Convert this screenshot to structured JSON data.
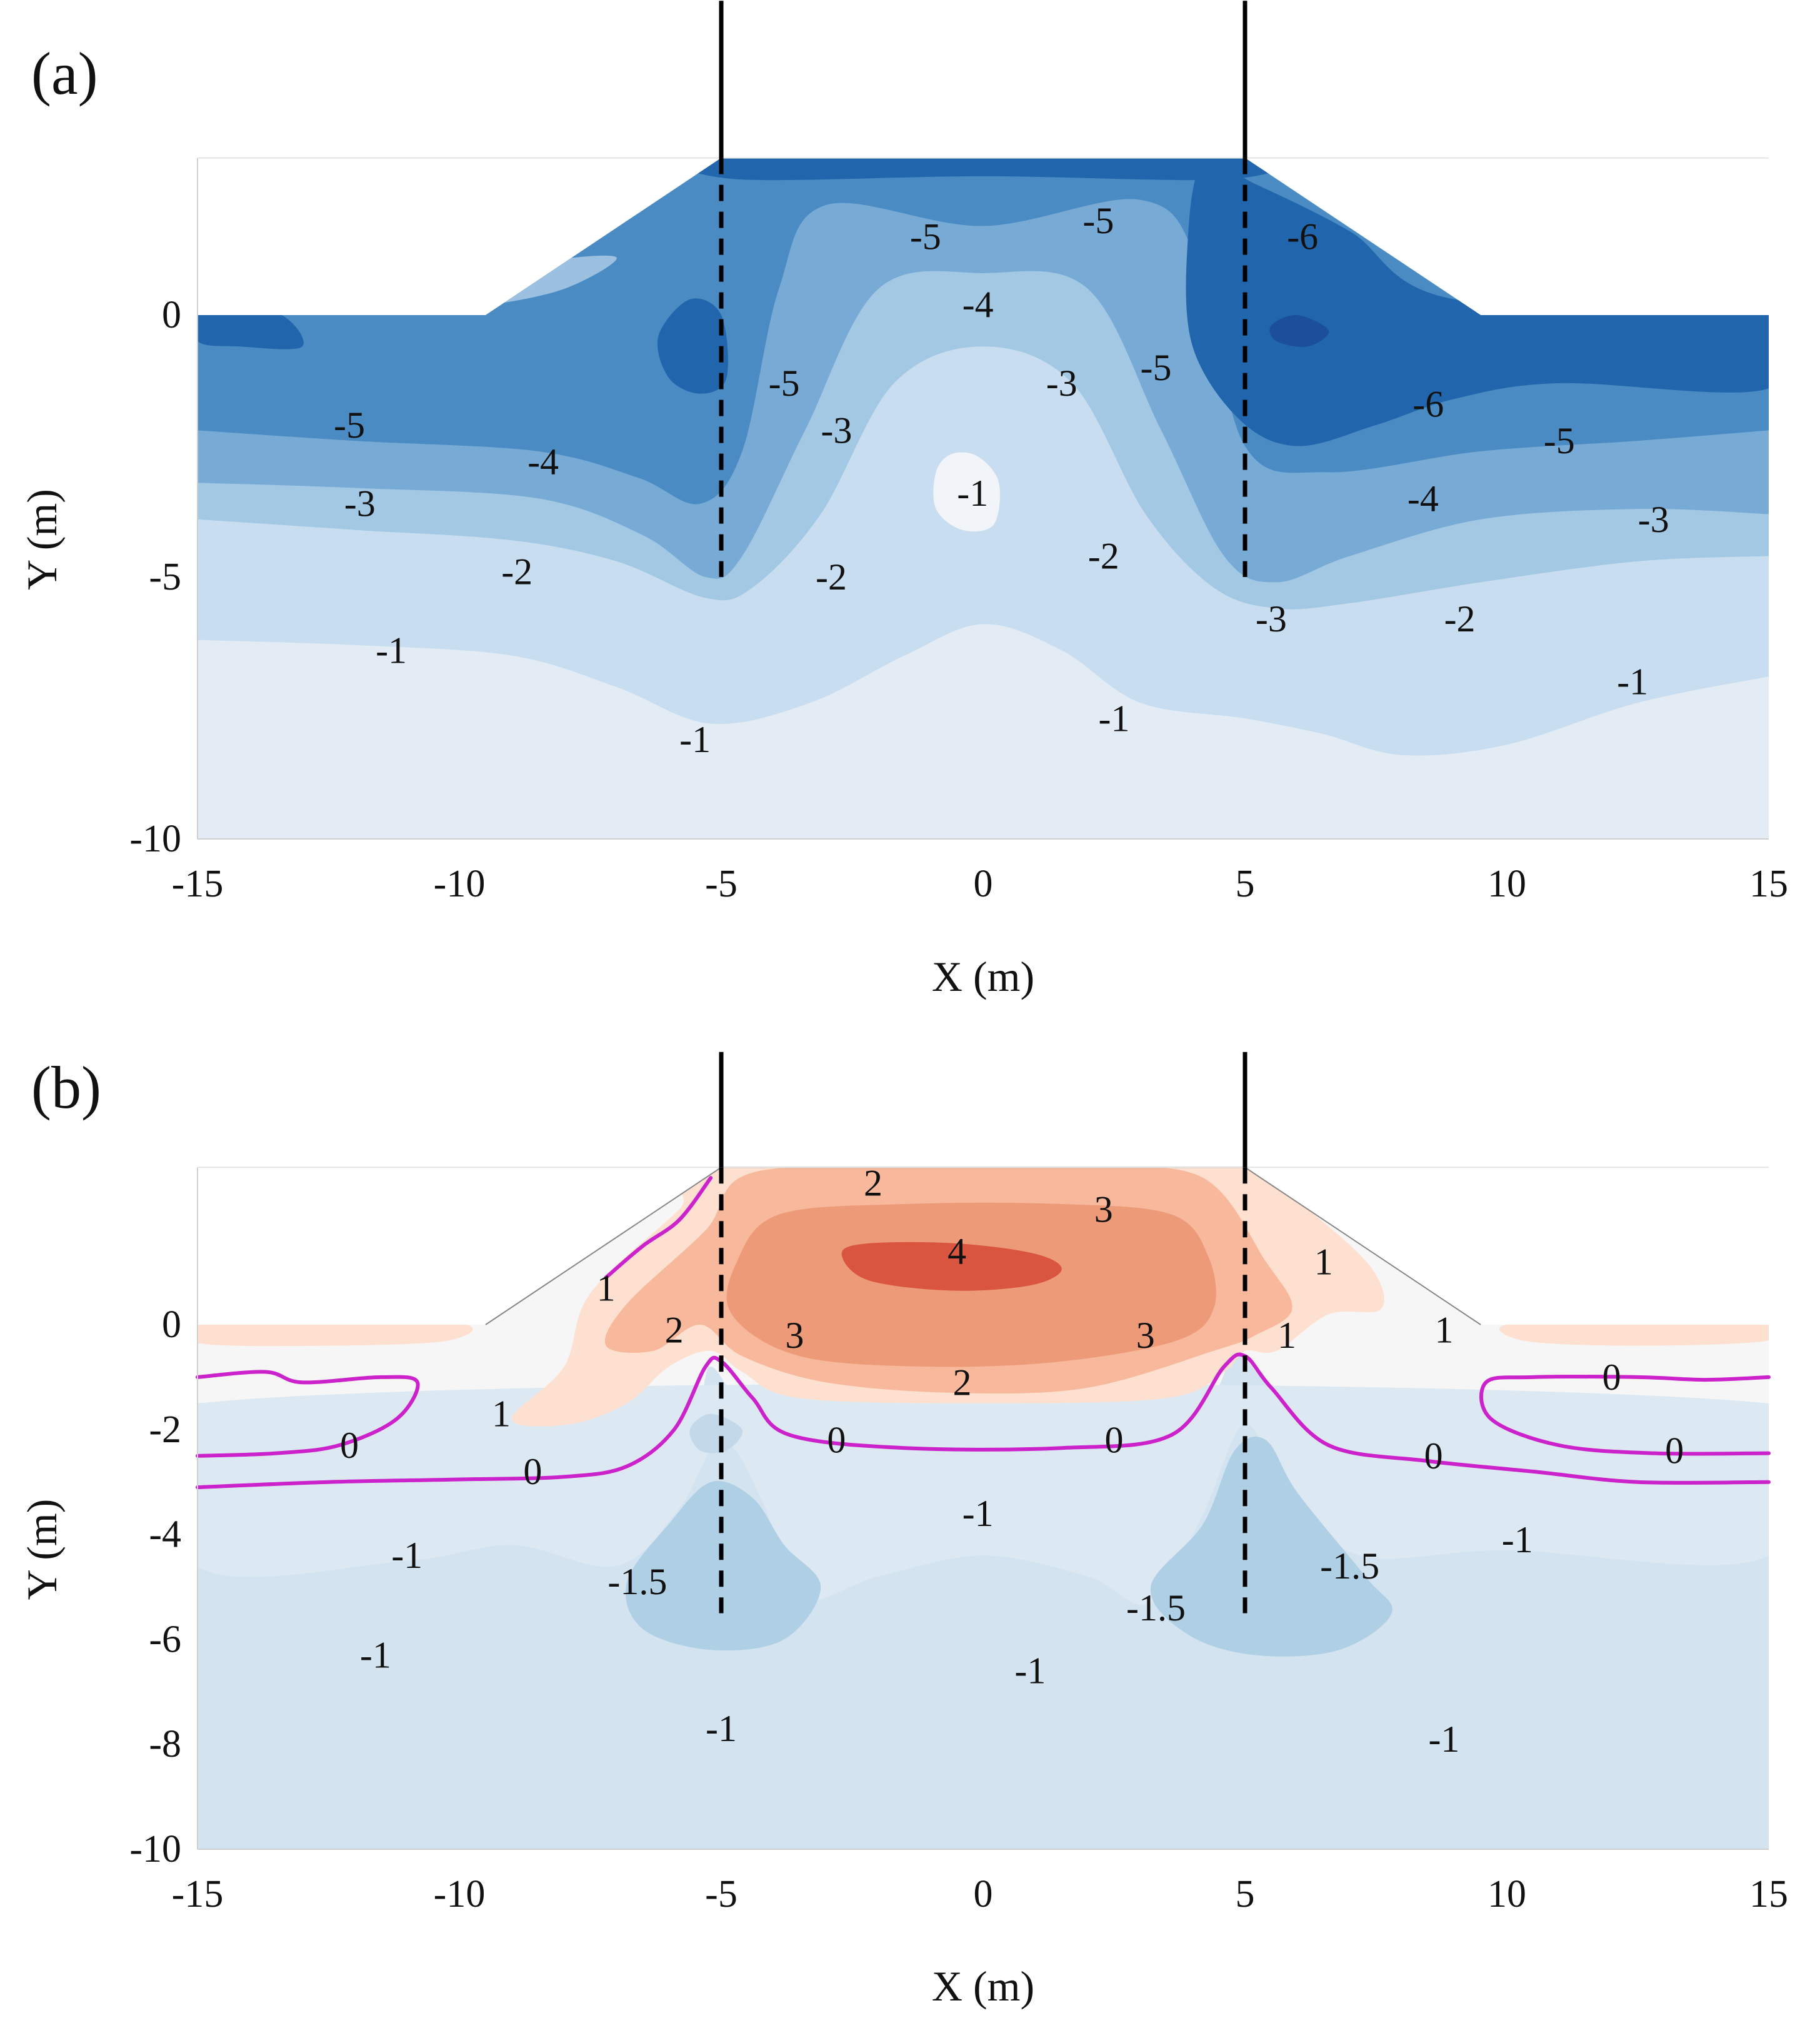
{
  "chart_data": [
    {
      "type": "contour",
      "panel_label": "(a)",
      "xlabel": "X (m)",
      "ylabel": "Y (m)",
      "xlim": [
        -15,
        15
      ],
      "ylim": [
        -10,
        3
      ],
      "xticks": [
        -15,
        -10,
        -5,
        0,
        5,
        10,
        15
      ],
      "yticks": [
        0,
        -5,
        -10
      ],
      "embankment_crest": {
        "x": [
          -5,
          5
        ],
        "y": 3
      },
      "embankment_toe": {
        "x": [
          -9.5,
          9.5
        ],
        "y": 0
      },
      "piles": [
        {
          "x": -5,
          "top": 6,
          "bottom": -5
        },
        {
          "x": 5,
          "top": 6,
          "bottom": -5
        }
      ],
      "levels": [
        -6,
        -5,
        -4,
        -3,
        -2,
        -1
      ],
      "colors": [
        "#2166ac",
        "#4a8bc4",
        "#77aad5",
        "#a3c8e4",
        "#c8def0",
        "#e3ecf5"
      ],
      "contour_labels": [
        {
          "text": "-5",
          "x": -1.1,
          "y": 1.5
        },
        {
          "text": "-5",
          "x": 2.2,
          "y": 1.8
        },
        {
          "text": "-6",
          "x": 6.1,
          "y": 1.5
        },
        {
          "text": "-4",
          "x": -0.1,
          "y": 0.2
        },
        {
          "text": "-5",
          "x": -3.8,
          "y": -1.3
        },
        {
          "text": "-3",
          "x": 1.5,
          "y": -1.3
        },
        {
          "text": "-5",
          "x": 3.3,
          "y": -1.0
        },
        {
          "text": "-3",
          "x": -2.8,
          "y": -2.2
        },
        {
          "text": "-5",
          "x": -12.1,
          "y": -2.1
        },
        {
          "text": "-4",
          "x": -8.4,
          "y": -2.8
        },
        {
          "text": "-6",
          "x": 8.5,
          "y": -1.7
        },
        {
          "text": "-5",
          "x": 11.0,
          "y": -2.4
        },
        {
          "text": "-1",
          "x": -0.2,
          "y": -3.4
        },
        {
          "text": "-3",
          "x": -11.9,
          "y": -3.6
        },
        {
          "text": "-4",
          "x": 8.4,
          "y": -3.5
        },
        {
          "text": "-3",
          "x": 12.8,
          "y": -3.9
        },
        {
          "text": "-2",
          "x": -2.9,
          "y": -5.0
        },
        {
          "text": "-2",
          "x": 2.3,
          "y": -4.6
        },
        {
          "text": "-2",
          "x": -8.9,
          "y": -4.9
        },
        {
          "text": "-3",
          "x": 5.5,
          "y": -5.8
        },
        {
          "text": "-2",
          "x": 9.1,
          "y": -5.8
        },
        {
          "text": "-1",
          "x": -11.3,
          "y": -6.4
        },
        {
          "text": "-1",
          "x": 12.4,
          "y": -7.0
        },
        {
          "text": "-1",
          "x": 2.5,
          "y": -7.7
        },
        {
          "text": "-1",
          "x": -5.5,
          "y": -8.1
        }
      ]
    },
    {
      "type": "contour",
      "panel_label": "(b)",
      "xlabel": "X (m)",
      "ylabel": "Y (m)",
      "xlim": [
        -15,
        15
      ],
      "ylim": [
        -10,
        3
      ],
      "xticks": [
        -15,
        -10,
        -5,
        0,
        5,
        10,
        15
      ],
      "yticks": [
        0,
        -2,
        -4,
        -6,
        -8,
        -10
      ],
      "embankment_crest": {
        "x": [
          -5,
          5
        ],
        "y": 3
      },
      "embankment_toe": {
        "x": [
          -9.5,
          9.5
        ],
        "y": 0
      },
      "piles": [
        {
          "x": -5,
          "top": 5.2,
          "bottom": -5.5
        },
        {
          "x": 5,
          "top": 5.2,
          "bottom": -5.5
        }
      ],
      "levels": [
        -1.5,
        -1,
        0,
        1,
        2,
        3,
        4
      ],
      "colors": [
        "#afcfe5",
        "#d3e4f0",
        "#f6f6f6",
        "#fde0cf",
        "#f7b89b",
        "#ec9a78",
        "#d9553f"
      ],
      "zero_contour_color": "#cc22cc",
      "contour_labels": [
        {
          "text": "2",
          "x": -2.1,
          "y": 2.7
        },
        {
          "text": "3",
          "x": 2.3,
          "y": 2.2
        },
        {
          "text": "4",
          "x": -0.5,
          "y": 1.4
        },
        {
          "text": "1",
          "x": -7.2,
          "y": 0.7
        },
        {
          "text": "1",
          "x": 6.5,
          "y": 1.2
        },
        {
          "text": "1",
          "x": 8.8,
          "y": -0.1
        },
        {
          "text": "2",
          "x": -5.9,
          "y": -0.1
        },
        {
          "text": "3",
          "x": -3.6,
          "y": -0.2
        },
        {
          "text": "3",
          "x": 3.1,
          "y": -0.2
        },
        {
          "text": "1",
          "x": 5.8,
          "y": -0.2
        },
        {
          "text": "2",
          "x": -0.4,
          "y": -1.1
        },
        {
          "text": "0",
          "x": 12.0,
          "y": -1.0
        },
        {
          "text": "1",
          "x": -9.2,
          "y": -1.7
        },
        {
          "text": "0",
          "x": -12.1,
          "y": -2.3
        },
        {
          "text": "0",
          "x": -2.8,
          "y": -2.2
        },
        {
          "text": "0",
          "x": 2.5,
          "y": -2.2
        },
        {
          "text": "0",
          "x": 8.6,
          "y": -2.5
        },
        {
          "text": "0",
          "x": 13.2,
          "y": -2.4
        },
        {
          "text": "0",
          "x": -8.6,
          "y": -2.8
        },
        {
          "text": "-1",
          "x": -0.1,
          "y": -3.6
        },
        {
          "text": "-1",
          "x": -11.0,
          "y": -4.4
        },
        {
          "text": "-1",
          "x": 10.2,
          "y": -4.1
        },
        {
          "text": "-1.5",
          "x": -6.6,
          "y": -4.9
        },
        {
          "text": "-1.5",
          "x": 7.0,
          "y": -4.6
        },
        {
          "text": "-1.5",
          "x": 3.3,
          "y": -5.4
        },
        {
          "text": "-1",
          "x": -11.6,
          "y": -6.3
        },
        {
          "text": "-1",
          "x": 0.9,
          "y": -6.6
        },
        {
          "text": "-1",
          "x": -5.0,
          "y": -7.7
        },
        {
          "text": "-1",
          "x": 8.8,
          "y": -7.9
        }
      ]
    }
  ]
}
